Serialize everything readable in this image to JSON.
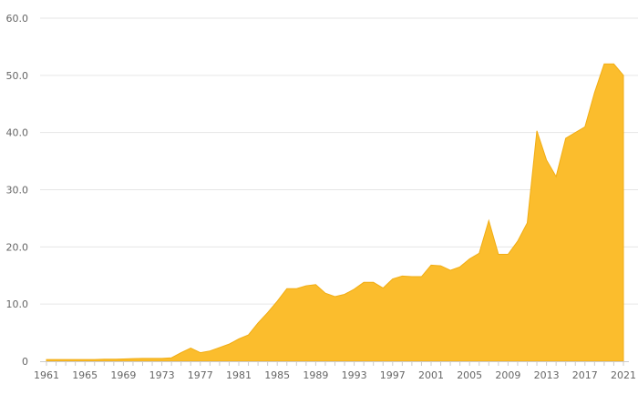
{
  "chart_data": {
    "type": "area",
    "title": "",
    "xlabel": "",
    "ylabel": "",
    "color": "#fbbd2d",
    "stroke_color": "#f1ad14",
    "grid": true,
    "legend": "none",
    "xlim": [
      1961,
      2021
    ],
    "ylim": [
      0,
      60
    ],
    "y_ticks": [
      0,
      10,
      20,
      30,
      40,
      50,
      60
    ],
    "y_tick_labels": [
      "0",
      "10.0",
      "20.0",
      "30.0",
      "40.0",
      "50.0",
      "60.0"
    ],
    "x_tick_labels": [
      "1961",
      "1965",
      "1969",
      "1973",
      "1977",
      "1981",
      "1985",
      "1989",
      "1993",
      "1997",
      "2001",
      "2005",
      "2009",
      "2013",
      "2017",
      "2021"
    ],
    "x": [
      1961,
      1962,
      1963,
      1964,
      1965,
      1966,
      1967,
      1968,
      1969,
      1970,
      1971,
      1972,
      1973,
      1974,
      1975,
      1976,
      1977,
      1978,
      1979,
      1980,
      1981,
      1982,
      1983,
      1984,
      1985,
      1986,
      1987,
      1988,
      1989,
      1990,
      1991,
      1992,
      1993,
      1994,
      1995,
      1996,
      1997,
      1998,
      1999,
      2000,
      2001,
      2002,
      2003,
      2004,
      2005,
      2006,
      2007,
      2008,
      2009,
      2010,
      2011,
      2012,
      2013,
      2014,
      2015,
      2016,
      2017,
      2018,
      2019,
      2020,
      2021
    ],
    "values": [
      0.3,
      0.3,
      0.3,
      0.3,
      0.3,
      0.3,
      0.35,
      0.35,
      0.4,
      0.45,
      0.5,
      0.5,
      0.5,
      0.6,
      1.5,
      2.3,
      1.5,
      1.8,
      2.4,
      3.0,
      3.9,
      4.6,
      6.7,
      8.5,
      10.5,
      12.7,
      12.7,
      13.2,
      13.4,
      11.9,
      11.3,
      11.7,
      12.6,
      13.8,
      13.8,
      12.8,
      14.4,
      14.9,
      14.8,
      14.8,
      16.8,
      16.7,
      15.9,
      16.5,
      17.9,
      18.9,
      24.6,
      18.7,
      18.7,
      21.0,
      24.2,
      40.3,
      35.2,
      32.3,
      39.0,
      40.0,
      41.0,
      47.0,
      52.0,
      52.0,
      50.0
    ]
  }
}
